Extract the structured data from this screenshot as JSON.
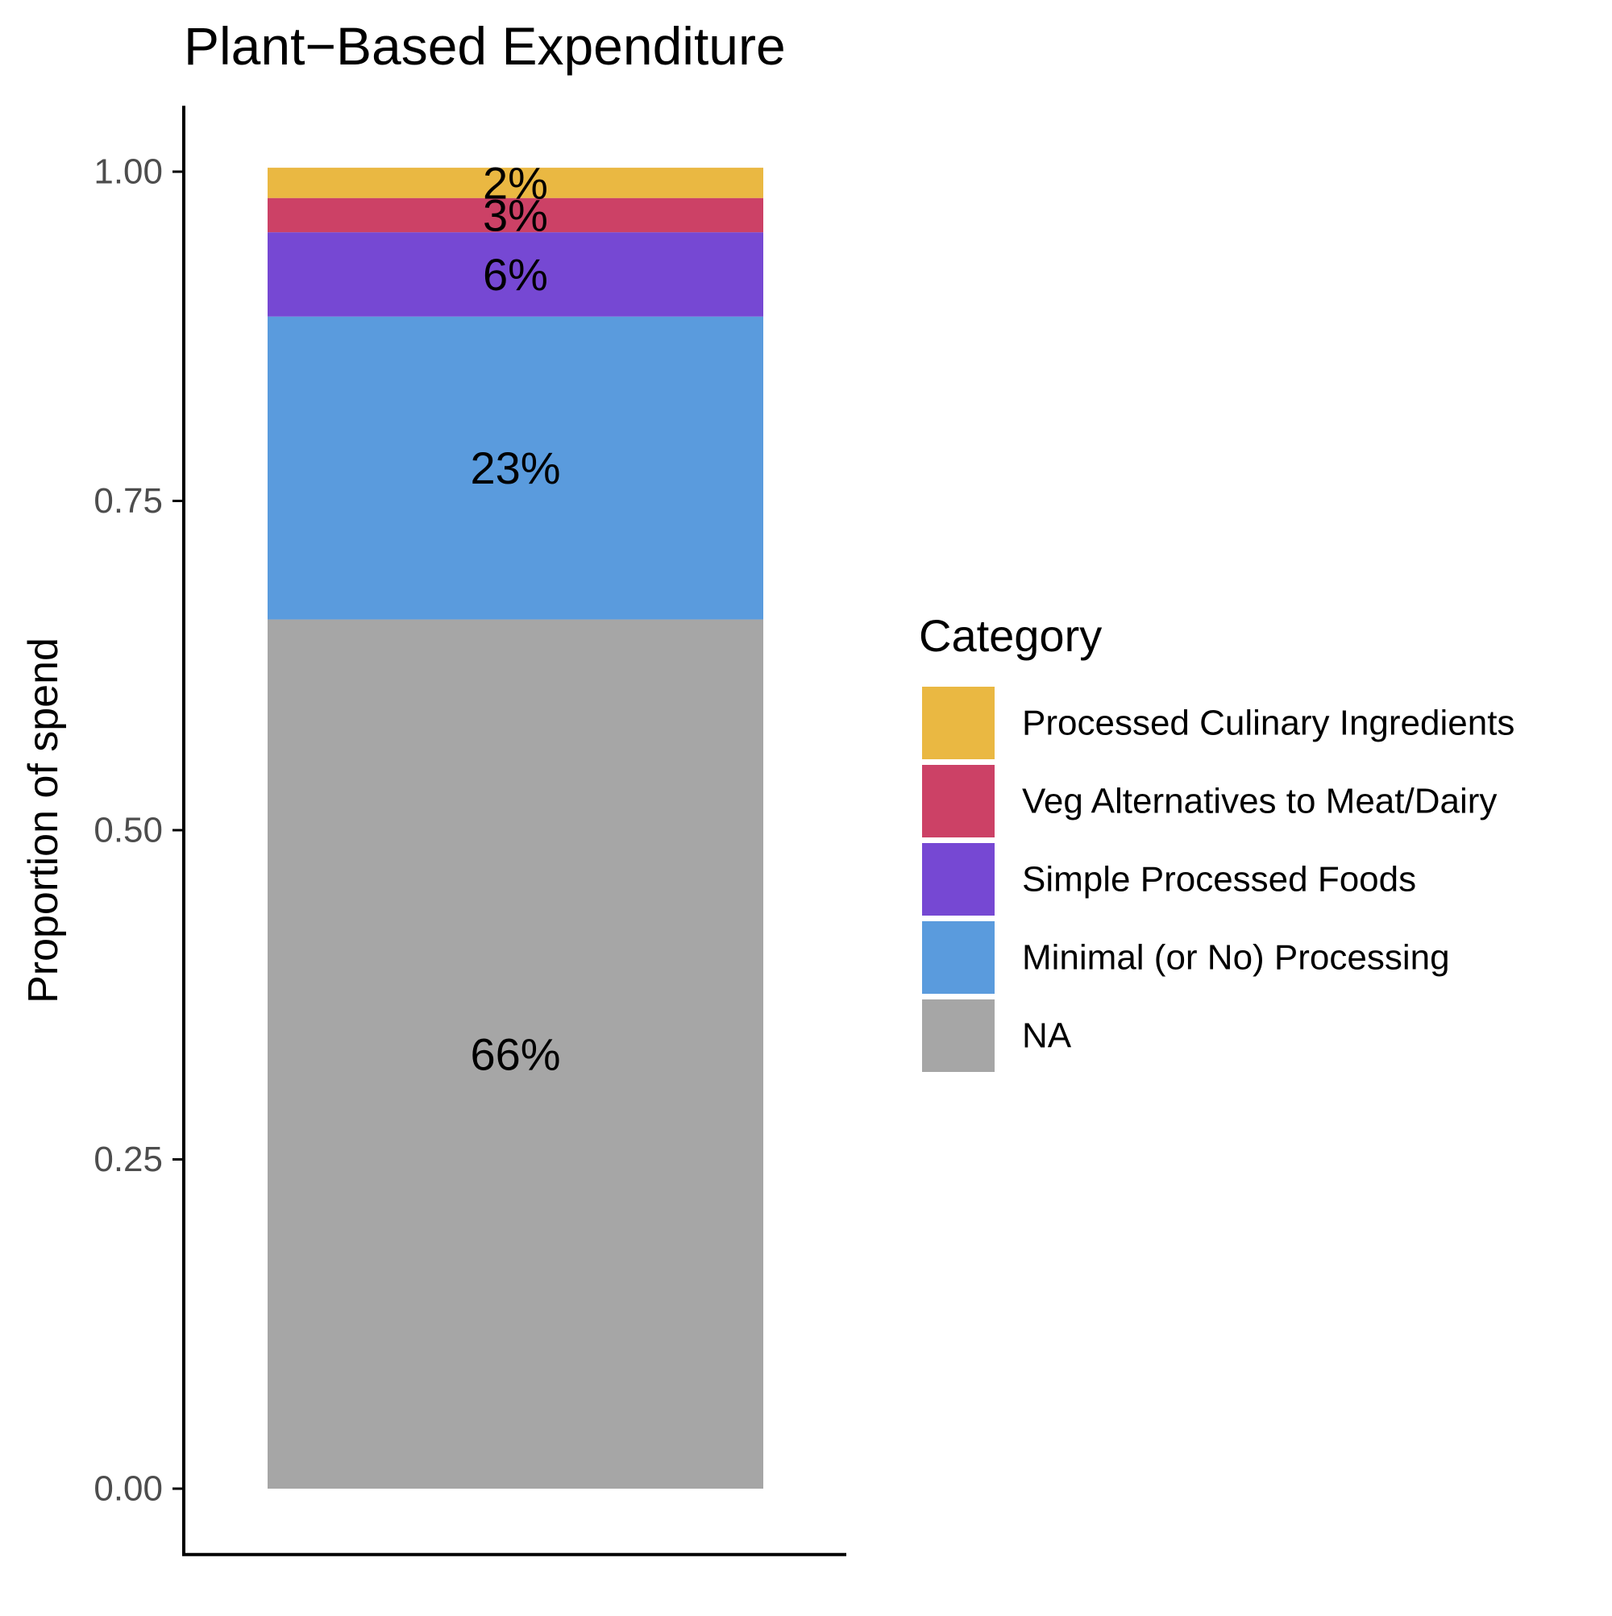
{
  "chart_data": {
    "type": "bar",
    "stacked": true,
    "title": "Plant−Based Expenditure",
    "xlabel": "",
    "ylabel": "Proportion of spend",
    "ylim": [
      -0.05,
      1.05
    ],
    "yticks": [
      0.0,
      0.25,
      0.5,
      0.75,
      1.0
    ],
    "ytick_labels": [
      "0.00",
      "0.25",
      "0.50",
      "0.75",
      "1.00"
    ],
    "grid": false,
    "legend": {
      "title": "Category",
      "placement": "right"
    },
    "categories": [
      ""
    ],
    "series": [
      {
        "name": "NA",
        "values": [
          0.66
        ],
        "label": "66%",
        "color": "#A6A6A6"
      },
      {
        "name": "Minimal (or No) Processing",
        "values": [
          0.23
        ],
        "label": "23%",
        "color": "#5A9BDD"
      },
      {
        "name": "Simple Processed Foods",
        "values": [
          0.064
        ],
        "label": "6%",
        "color": "#7648D3"
      },
      {
        "name": "Veg Alternatives to Meat/Dairy",
        "values": [
          0.026
        ],
        "label": "3%",
        "color": "#CC4166"
      },
      {
        "name": "Processed Culinary Ingredients",
        "values": [
          0.023
        ],
        "label": "2%",
        "color": "#EAB842"
      }
    ],
    "legend_order": [
      "Processed Culinary Ingredients",
      "Veg Alternatives to Meat/Dairy",
      "Simple Processed Foods",
      "Minimal (or No) Processing",
      "NA"
    ]
  }
}
